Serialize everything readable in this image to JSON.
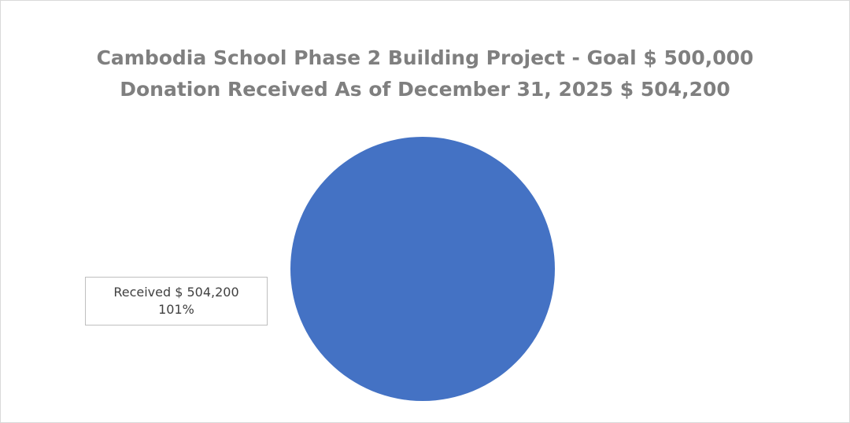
{
  "chart_data": {
    "type": "pie",
    "title": "Cambodia School Phase 2 Building Project - Goal $ 500,000",
    "subtitle": "Donation Received As of December 31, 2025 $ 504,200",
    "slices": [
      {
        "name": "Received",
        "value": 504200,
        "value_label": "$ 504,200",
        "percent_label": "101%",
        "color": "#4472C4"
      }
    ],
    "legend": "none"
  }
}
